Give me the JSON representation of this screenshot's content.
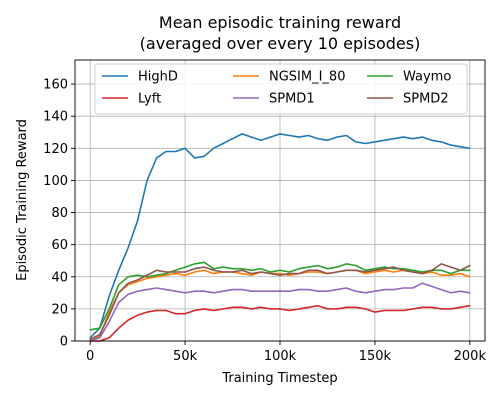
{
  "chart_data": {
    "type": "line",
    "title": "Mean episodic training reward",
    "subtitle": "(averaged over every 10 episodes)",
    "xlabel": "Training Timestep",
    "ylabel": "Episodic Training Reward",
    "xlim": [
      -8000,
      208000
    ],
    "ylim": [
      0,
      175
    ],
    "xticks": [
      0,
      50000,
      100000,
      150000,
      200000
    ],
    "xtick_labels": [
      "0",
      "50k",
      "100k",
      "150k",
      "200k"
    ],
    "yticks": [
      0,
      20,
      40,
      60,
      80,
      100,
      120,
      140,
      160
    ],
    "ytick_labels": [
      "0",
      "20",
      "40",
      "60",
      "80",
      "100",
      "120",
      "140",
      "160"
    ],
    "grid": true,
    "legend": {
      "placement": "top",
      "columns": 3
    },
    "series": [
      {
        "name": "HighD",
        "color": "#1f77b4",
        "x": [
          0,
          5000,
          10000,
          15000,
          20000,
          25000,
          30000,
          35000,
          40000,
          45000,
          50000,
          55000,
          60000,
          65000,
          70000,
          75000,
          80000,
          85000,
          90000,
          95000,
          100000,
          105000,
          110000,
          115000,
          120000,
          125000,
          130000,
          135000,
          140000,
          145000,
          150000,
          155000,
          160000,
          165000,
          170000,
          175000,
          180000,
          185000,
          190000,
          195000,
          200000
        ],
        "values": [
          2,
          8,
          28,
          44,
          58,
          75,
          100,
          114,
          118,
          118,
          120,
          114,
          115,
          120,
          123,
          126,
          129,
          127,
          125,
          127,
          129,
          128,
          127,
          128,
          126,
          125,
          127,
          128,
          124,
          123,
          124,
          125,
          126,
          127,
          126,
          127,
          125,
          124,
          122,
          121,
          120
        ]
      },
      {
        "name": "NGSIM_I_80",
        "color": "#ff7f0e",
        "x": [
          0,
          5000,
          10000,
          15000,
          20000,
          25000,
          30000,
          35000,
          40000,
          45000,
          50000,
          55000,
          60000,
          65000,
          70000,
          75000,
          80000,
          85000,
          90000,
          95000,
          100000,
          105000,
          110000,
          115000,
          120000,
          125000,
          130000,
          135000,
          140000,
          145000,
          150000,
          155000,
          160000,
          165000,
          170000,
          175000,
          180000,
          185000,
          190000,
          195000,
          200000
        ],
        "values": [
          0,
          3,
          18,
          30,
          35,
          37,
          39,
          40,
          41,
          42,
          41,
          43,
          44,
          42,
          43,
          43,
          42,
          41,
          43,
          42,
          42,
          41,
          42,
          43,
          43,
          42,
          43,
          44,
          44,
          42,
          43,
          44,
          43,
          44,
          43,
          42,
          43,
          41,
          41,
          42,
          40
        ]
      },
      {
        "name": "Waymo",
        "color": "#2ca02c",
        "x": [
          0,
          5000,
          10000,
          15000,
          20000,
          25000,
          30000,
          35000,
          40000,
          45000,
          50000,
          55000,
          60000,
          65000,
          70000,
          75000,
          80000,
          85000,
          90000,
          95000,
          100000,
          105000,
          110000,
          115000,
          120000,
          125000,
          130000,
          135000,
          140000,
          145000,
          150000,
          155000,
          160000,
          165000,
          170000,
          175000,
          180000,
          185000,
          190000,
          195000,
          200000
        ],
        "values": [
          7,
          8,
          20,
          35,
          40,
          41,
          40,
          41,
          42,
          44,
          46,
          48,
          49,
          45,
          46,
          45,
          45,
          44,
          45,
          43,
          44,
          43,
          45,
          46,
          47,
          45,
          46,
          48,
          47,
          44,
          45,
          46,
          45,
          45,
          44,
          43,
          44,
          44,
          42,
          44,
          44
        ]
      },
      {
        "name": "Lyft",
        "color": "#d62728",
        "x": [
          0,
          5000,
          10000,
          15000,
          20000,
          25000,
          30000,
          35000,
          40000,
          45000,
          50000,
          55000,
          60000,
          65000,
          70000,
          75000,
          80000,
          85000,
          90000,
          95000,
          100000,
          105000,
          110000,
          115000,
          120000,
          125000,
          130000,
          135000,
          140000,
          145000,
          150000,
          155000,
          160000,
          165000,
          170000,
          175000,
          180000,
          185000,
          190000,
          195000,
          200000
        ],
        "values": [
          0,
          0,
          2,
          8,
          13,
          16,
          18,
          19,
          19,
          17,
          17,
          19,
          20,
          19,
          20,
          21,
          21,
          20,
          21,
          20,
          20,
          19,
          20,
          21,
          22,
          20,
          20,
          21,
          21,
          20,
          18,
          19,
          19,
          19,
          20,
          21,
          21,
          20,
          20,
          21,
          22
        ]
      },
      {
        "name": "SPMD1",
        "color": "#9467bd",
        "x": [
          0,
          5000,
          10000,
          15000,
          20000,
          25000,
          30000,
          35000,
          40000,
          45000,
          50000,
          55000,
          60000,
          65000,
          70000,
          75000,
          80000,
          85000,
          90000,
          95000,
          100000,
          105000,
          110000,
          115000,
          120000,
          125000,
          130000,
          135000,
          140000,
          145000,
          150000,
          155000,
          160000,
          165000,
          170000,
          175000,
          180000,
          185000,
          190000,
          195000,
          200000
        ],
        "values": [
          0,
          2,
          12,
          24,
          29,
          31,
          32,
          33,
          32,
          31,
          30,
          31,
          31,
          30,
          31,
          32,
          32,
          31,
          31,
          31,
          31,
          31,
          32,
          32,
          31,
          31,
          32,
          33,
          31,
          30,
          31,
          32,
          32,
          33,
          33,
          36,
          34,
          32,
          30,
          31,
          30
        ]
      },
      {
        "name": "SPMD2",
        "color": "#8c564b",
        "x": [
          0,
          5000,
          10000,
          15000,
          20000,
          25000,
          30000,
          35000,
          40000,
          45000,
          50000,
          55000,
          60000,
          65000,
          70000,
          75000,
          80000,
          85000,
          90000,
          95000,
          100000,
          105000,
          110000,
          115000,
          120000,
          125000,
          130000,
          135000,
          140000,
          145000,
          150000,
          155000,
          160000,
          165000,
          170000,
          175000,
          180000,
          185000,
          190000,
          195000,
          200000
        ],
        "values": [
          1,
          4,
          16,
          30,
          36,
          38,
          41,
          44,
          43,
          43,
          43,
          45,
          46,
          44,
          43,
          43,
          44,
          42,
          43,
          42,
          41,
          42,
          42,
          44,
          44,
          42,
          43,
          44,
          44,
          43,
          44,
          45,
          46,
          44,
          43,
          42,
          44,
          48,
          46,
          44,
          47
        ]
      }
    ]
  }
}
